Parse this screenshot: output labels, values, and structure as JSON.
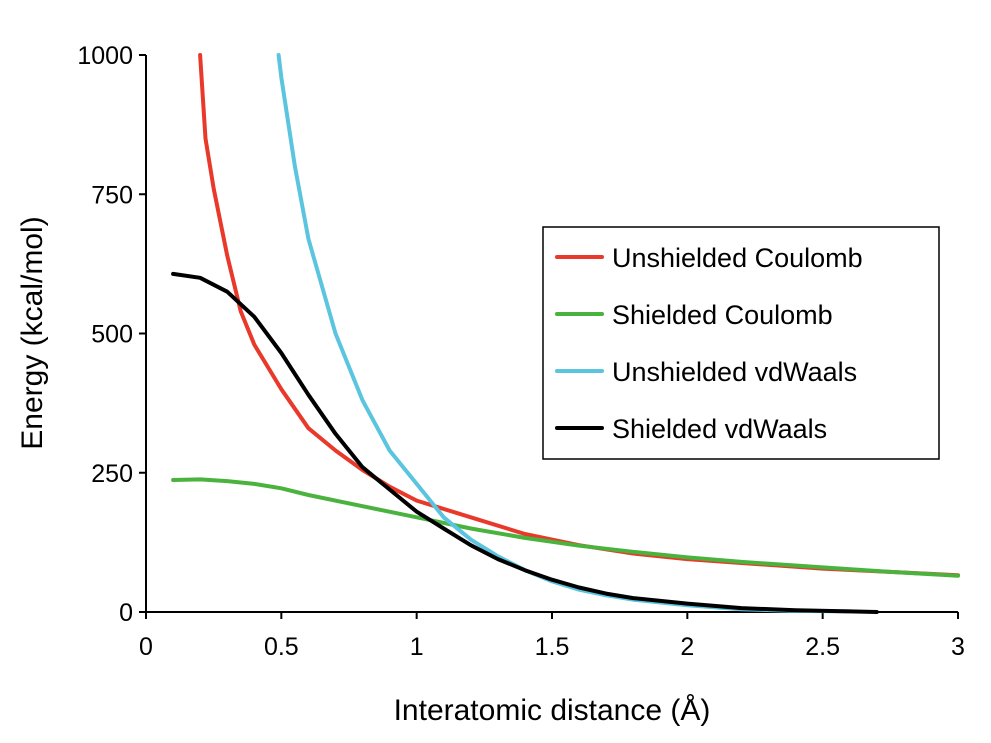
{
  "chart_data": {
    "type": "line",
    "title": "",
    "xlabel": "Interatomic distance (Å)",
    "ylabel": "Energy (kcal/mol)",
    "xlim": [
      0,
      3
    ],
    "ylim": [
      0,
      1000
    ],
    "xticks": [
      0,
      0.5,
      1,
      1.5,
      2,
      2.5,
      3
    ],
    "xtick_labels": [
      "0",
      "0.5",
      "1",
      "1.5",
      "2",
      "2.5",
      "3"
    ],
    "yticks": [
      0,
      250,
      500,
      750,
      1000
    ],
    "ytick_labels": [
      "0",
      "250",
      "500",
      "750",
      "1000"
    ],
    "grid": false,
    "legend_position": "right",
    "series": [
      {
        "name": "Unshielded Coulomb",
        "color": "#e8392a",
        "points": [
          [
            0.2,
            1000
          ],
          [
            0.22,
            850
          ],
          [
            0.25,
            760
          ],
          [
            0.3,
            640
          ],
          [
            0.35,
            540
          ],
          [
            0.4,
            480
          ],
          [
            0.5,
            400
          ],
          [
            0.6,
            330
          ],
          [
            0.7,
            290
          ],
          [
            0.8,
            255
          ],
          [
            0.9,
            225
          ],
          [
            1.0,
            200
          ],
          [
            1.2,
            170
          ],
          [
            1.4,
            140
          ],
          [
            1.6,
            120
          ],
          [
            1.8,
            105
          ],
          [
            2.0,
            95
          ],
          [
            2.2,
            88
          ],
          [
            2.5,
            78
          ],
          [
            2.75,
            72
          ],
          [
            3.0,
            66
          ]
        ]
      },
      {
        "name": "Shielded Coulomb",
        "color": "#4ab33e",
        "points": [
          [
            0.1,
            237
          ],
          [
            0.2,
            238
          ],
          [
            0.3,
            235
          ],
          [
            0.4,
            230
          ],
          [
            0.5,
            222
          ],
          [
            0.6,
            210
          ],
          [
            0.8,
            190
          ],
          [
            1.0,
            170
          ],
          [
            1.2,
            150
          ],
          [
            1.4,
            133
          ],
          [
            1.6,
            119
          ],
          [
            1.8,
            108
          ],
          [
            2.0,
            98
          ],
          [
            2.2,
            90
          ],
          [
            2.5,
            80
          ],
          [
            2.75,
            72
          ],
          [
            3.0,
            65
          ]
        ]
      },
      {
        "name": "Unshielded vdWaals",
        "color": "#5bc4de",
        "points": [
          [
            0.49,
            1000
          ],
          [
            0.5,
            960
          ],
          [
            0.55,
            800
          ],
          [
            0.6,
            670
          ],
          [
            0.7,
            500
          ],
          [
            0.8,
            380
          ],
          [
            0.9,
            290
          ],
          [
            1.0,
            230
          ],
          [
            1.1,
            170
          ],
          [
            1.2,
            130
          ],
          [
            1.3,
            100
          ],
          [
            1.4,
            75
          ],
          [
            1.5,
            55
          ],
          [
            1.6,
            40
          ],
          [
            1.7,
            30
          ],
          [
            1.8,
            22
          ],
          [
            2.0,
            12
          ],
          [
            2.2,
            5
          ],
          [
            2.4,
            2
          ],
          [
            2.6,
            1
          ]
        ]
      },
      {
        "name": "Shielded vdWaals",
        "color": "#000000",
        "points": [
          [
            0.1,
            607
          ],
          [
            0.2,
            600
          ],
          [
            0.3,
            575
          ],
          [
            0.4,
            530
          ],
          [
            0.5,
            465
          ],
          [
            0.6,
            390
          ],
          [
            0.7,
            320
          ],
          [
            0.8,
            260
          ],
          [
            0.9,
            220
          ],
          [
            1.0,
            180
          ],
          [
            1.1,
            150
          ],
          [
            1.2,
            120
          ],
          [
            1.3,
            95
          ],
          [
            1.4,
            75
          ],
          [
            1.5,
            58
          ],
          [
            1.6,
            44
          ],
          [
            1.7,
            33
          ],
          [
            1.8,
            25
          ],
          [
            2.0,
            15
          ],
          [
            2.2,
            7
          ],
          [
            2.4,
            3
          ],
          [
            2.6,
            1
          ],
          [
            2.7,
            0
          ]
        ]
      }
    ]
  }
}
